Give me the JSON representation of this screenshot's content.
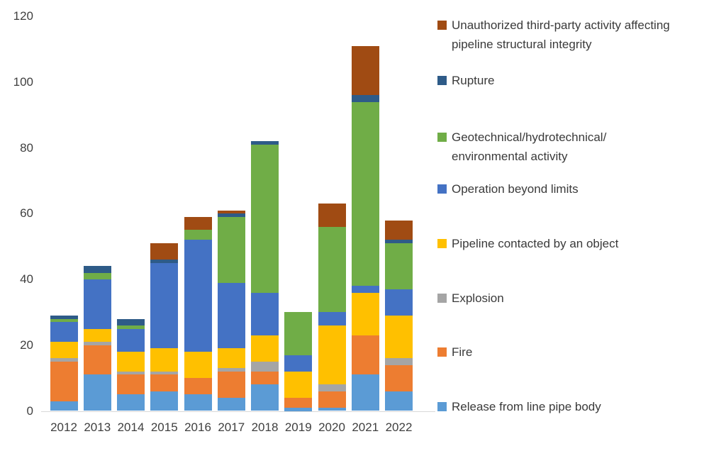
{
  "chart_data": {
    "type": "bar",
    "stacked": true,
    "title": "",
    "xlabel": "",
    "ylabel": "",
    "categories": [
      "2012",
      "2013",
      "2014",
      "2015",
      "2016",
      "2017",
      "2018",
      "2019",
      "2020",
      "2021",
      "2022"
    ],
    "series": [
      {
        "name": "Release from line pipe body",
        "color": "#5B9BD5",
        "values": [
          3,
          11,
          5,
          6,
          5,
          4,
          8,
          1,
          1,
          11,
          6
        ]
      },
      {
        "name": "Fire",
        "color": "#ED7D31",
        "values": [
          12,
          9,
          6,
          5,
          5,
          8,
          4,
          3,
          5,
          12,
          8
        ]
      },
      {
        "name": "Explosion",
        "color": "#A5A5A5",
        "values": [
          1,
          1,
          1,
          1,
          0,
          1,
          3,
          0,
          2,
          0,
          2
        ]
      },
      {
        "name": "Pipeline contacted by an object",
        "color": "#FFC000",
        "values": [
          5,
          4,
          6,
          7,
          8,
          6,
          8,
          8,
          18,
          13,
          13
        ]
      },
      {
        "name": "Operation beyond limits",
        "color": "#4472C4",
        "values": [
          6,
          15,
          7,
          26,
          34,
          20,
          13,
          5,
          4,
          2,
          8
        ]
      },
      {
        "name": "Geotechnical/hydrotechnical/environmental activity",
        "color": "#70AD47",
        "values": [
          1,
          2,
          1,
          0,
          3,
          20,
          45,
          13,
          26,
          56,
          14
        ]
      },
      {
        "name": "Rupture",
        "color": "#2E5B88",
        "values": [
          1,
          2,
          2,
          1,
          0,
          1,
          1,
          0,
          0,
          2,
          1
        ]
      },
      {
        "name": "Unauthorized third-party activity affecting pipeline structural integrity",
        "color": "#A04B13",
        "values": [
          0,
          0,
          0,
          5,
          4,
          1,
          0,
          0,
          7,
          15,
          6
        ]
      }
    ],
    "totals": [
      29,
      44,
      28,
      51,
      59,
      61,
      82,
      30,
      63,
      111,
      58
    ],
    "ylim": [
      0,
      120
    ],
    "y_ticks": [
      0,
      20,
      40,
      60,
      80,
      100,
      120
    ],
    "grid": false,
    "legend_position": "right"
  },
  "axes": {
    "y_labels": [
      "0",
      "20",
      "40",
      "60",
      "80",
      "100",
      "120"
    ],
    "x_labels": [
      "2012",
      "2013",
      "2014",
      "2015",
      "2016",
      "2017",
      "2018",
      "2019",
      "2020",
      "2021",
      "2022"
    ]
  },
  "legend": {
    "entries": [
      {
        "color": "#A04B13",
        "lines": [
          "Unauthorized third-party activity affecting",
          "pipeline structural integrity"
        ]
      },
      {
        "color": "#2E5B88",
        "lines": [
          "Rupture"
        ]
      },
      {
        "color": "#70AD47",
        "lines": [
          "Geotechnical/hydrotechnical/",
          "environmental activity"
        ]
      },
      {
        "color": "#4472C4",
        "lines": [
          "Operation beyond limits"
        ]
      },
      {
        "color": "#FFC000",
        "lines": [
          "Pipeline contacted by an object"
        ]
      },
      {
        "color": "#A5A5A5",
        "lines": [
          "Explosion"
        ]
      },
      {
        "color": "#ED7D31",
        "lines": [
          "Fire"
        ]
      },
      {
        "color": "#5B9BD5",
        "lines": [
          "Release from line pipe body"
        ]
      }
    ]
  }
}
